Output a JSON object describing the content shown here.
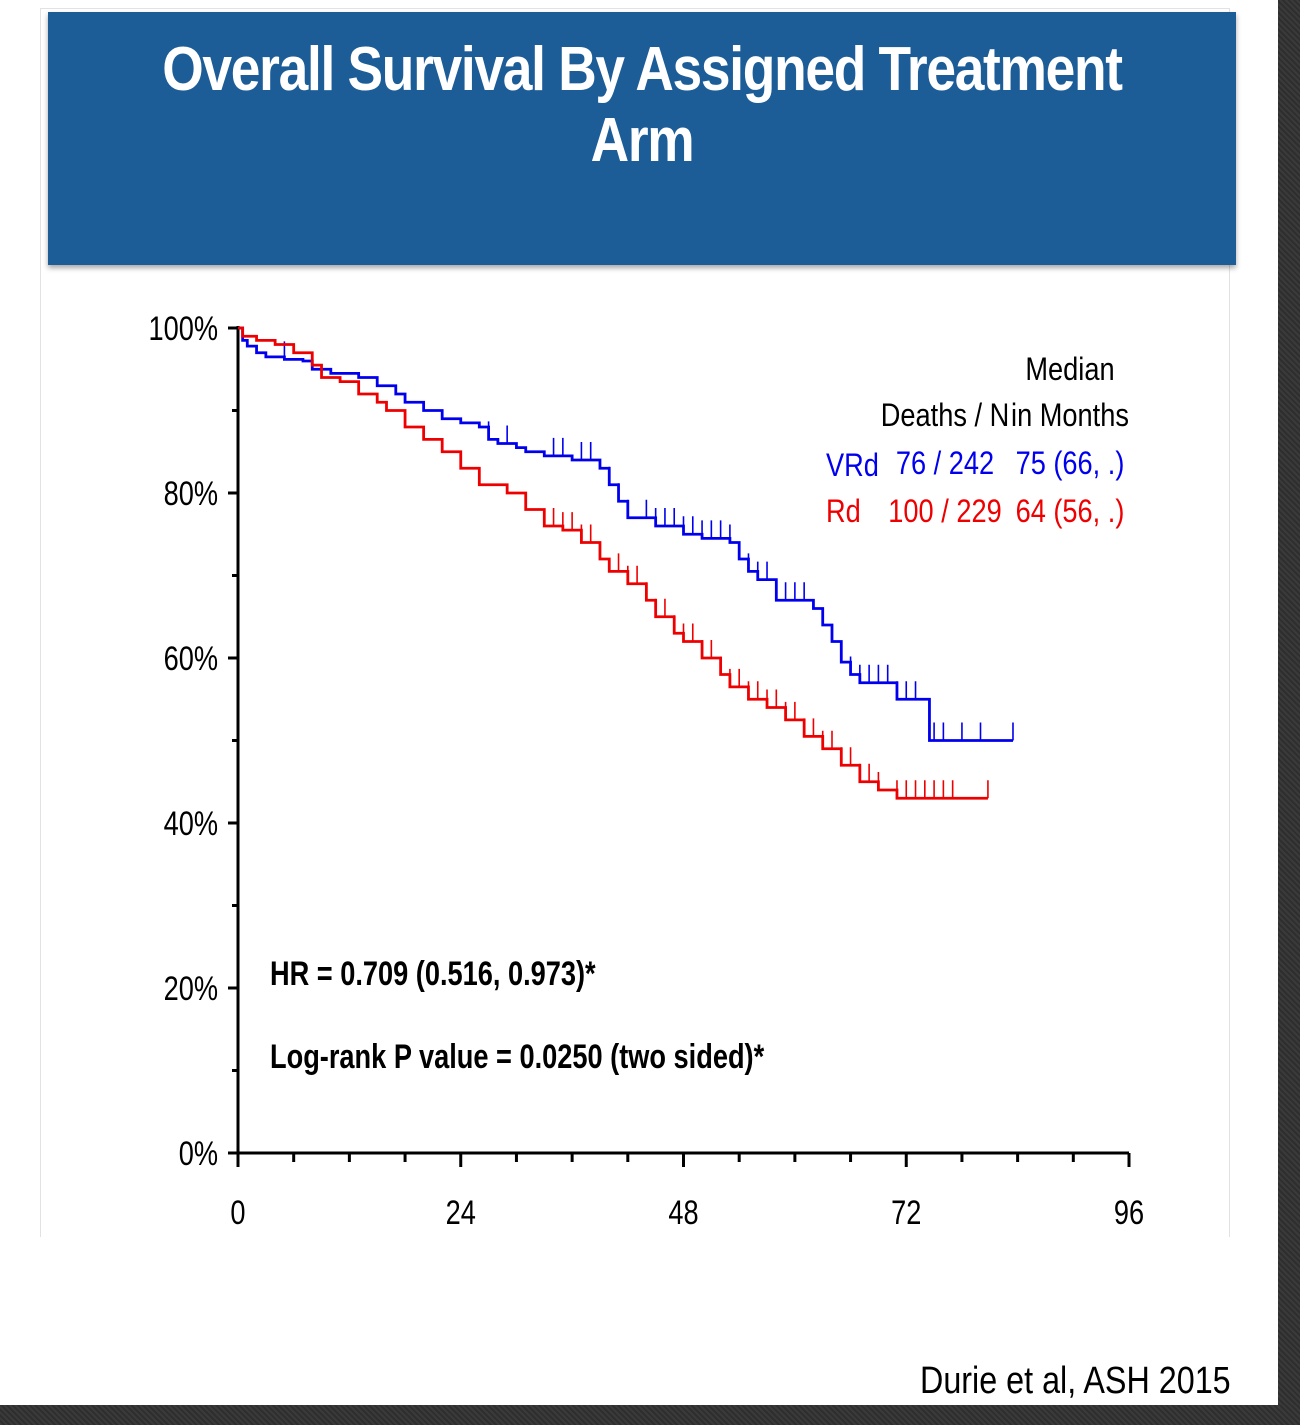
{
  "slide": {
    "title": "Overall Survival By Assigned Treatment Arm",
    "citation": "Durie et al, ASH 2015"
  },
  "colors": {
    "title_band": "#1c5d98",
    "vrd": "#0000ee",
    "rd": "#ee0000",
    "axis": "#000000"
  },
  "chart_data": {
    "type": "line",
    "subtype": "kaplan-meier",
    "xlim": [
      0,
      96
    ],
    "ylim": [
      0,
      100
    ],
    "x_ticks": [
      "0",
      "24",
      "48",
      "72",
      "96"
    ],
    "y_ticks": [
      "0%",
      "20%",
      "40%",
      "60%",
      "80%",
      "100%"
    ],
    "legend_header": {
      "deaths": "Deaths / N",
      "median_line1": "Median",
      "median_line2": "in Months"
    },
    "series": [
      {
        "name": "VRd",
        "deaths_n": "76 / 242",
        "median": "75 (66, .)",
        "color": "#0000ee",
        "points": [
          [
            0,
            100
          ],
          [
            0.5,
            98.5
          ],
          [
            1,
            97.8
          ],
          [
            2,
            97
          ],
          [
            3,
            96.5
          ],
          [
            5,
            96.2
          ],
          [
            7,
            96
          ],
          [
            8,
            95
          ],
          [
            10,
            94.5
          ],
          [
            13,
            94
          ],
          [
            15,
            93
          ],
          [
            17,
            92
          ],
          [
            18,
            91
          ],
          [
            20,
            90
          ],
          [
            22,
            89
          ],
          [
            24,
            88.5
          ],
          [
            26,
            88
          ],
          [
            27,
            86.5
          ],
          [
            28,
            86
          ],
          [
            30,
            85.5
          ],
          [
            31,
            85
          ],
          [
            33,
            84.5
          ],
          [
            36,
            84
          ],
          [
            38,
            84
          ],
          [
            39,
            83
          ],
          [
            40,
            81
          ],
          [
            41,
            79
          ],
          [
            42,
            77
          ],
          [
            44,
            77
          ],
          [
            45,
            76
          ],
          [
            48,
            75
          ],
          [
            50,
            74.5
          ],
          [
            53,
            74
          ],
          [
            54,
            72
          ],
          [
            55,
            70.5
          ],
          [
            56,
            69.5
          ],
          [
            58,
            67
          ],
          [
            60,
            67
          ],
          [
            62,
            66
          ],
          [
            63,
            64
          ],
          [
            64,
            62
          ],
          [
            65,
            59.5
          ],
          [
            66,
            58
          ],
          [
            67,
            57
          ],
          [
            69,
            57
          ],
          [
            71,
            55
          ],
          [
            74,
            55
          ],
          [
            74.5,
            50
          ],
          [
            83.5,
            50
          ]
        ],
        "censor_x": [
          5,
          27,
          29,
          34,
          35,
          37,
          38,
          40,
          41,
          42,
          44,
          45,
          46,
          47,
          48,
          49,
          50,
          51,
          52,
          53,
          55,
          56,
          57,
          58,
          59,
          60,
          61,
          66,
          67,
          68,
          69,
          70,
          71,
          72,
          73,
          75,
          76,
          78,
          80,
          83.5
        ]
      },
      {
        "name": "Rd",
        "deaths_n": "100 / 229",
        "median": "64 (56, .)",
        "color": "#ee0000",
        "points": [
          [
            0,
            100
          ],
          [
            0.5,
            99
          ],
          [
            2,
            98.5
          ],
          [
            4,
            98
          ],
          [
            6,
            97
          ],
          [
            8,
            95.5
          ],
          [
            9,
            94
          ],
          [
            11,
            93.5
          ],
          [
            13,
            92
          ],
          [
            15,
            91
          ],
          [
            16,
            90
          ],
          [
            18,
            88
          ],
          [
            20,
            86.5
          ],
          [
            22,
            85
          ],
          [
            24,
            83
          ],
          [
            26,
            81
          ],
          [
            29,
            80
          ],
          [
            31,
            78
          ],
          [
            33,
            76
          ],
          [
            35,
            75.5
          ],
          [
            37,
            74
          ],
          [
            39,
            72
          ],
          [
            40,
            70.5
          ],
          [
            42,
            69
          ],
          [
            44,
            67
          ],
          [
            45,
            65
          ],
          [
            47,
            63
          ],
          [
            48,
            62
          ],
          [
            50,
            60
          ],
          [
            52,
            58
          ],
          [
            53,
            56.5
          ],
          [
            55,
            55
          ],
          [
            57,
            54
          ],
          [
            59,
            52.5
          ],
          [
            61,
            50.5
          ],
          [
            63,
            49
          ],
          [
            65,
            47
          ],
          [
            67,
            45
          ],
          [
            69,
            44
          ],
          [
            71,
            43
          ],
          [
            72,
            43
          ],
          [
            80.8,
            43
          ]
        ],
        "censor_x": [
          34,
          35,
          36,
          37,
          38,
          41,
          42,
          43,
          44,
          45,
          46,
          47,
          48,
          49,
          50,
          51,
          52,
          53,
          54,
          55,
          56,
          57,
          58,
          59,
          60,
          61,
          62,
          63,
          64,
          65,
          66,
          67,
          68,
          69,
          71,
          72,
          73,
          74,
          75,
          76,
          77,
          80.8
        ]
      }
    ],
    "annotations": {
      "hr": "HR = 0.709 (0.516, 0.973)*",
      "pvalue": "Log-rank P value = 0.0250 (two sided)*"
    }
  }
}
